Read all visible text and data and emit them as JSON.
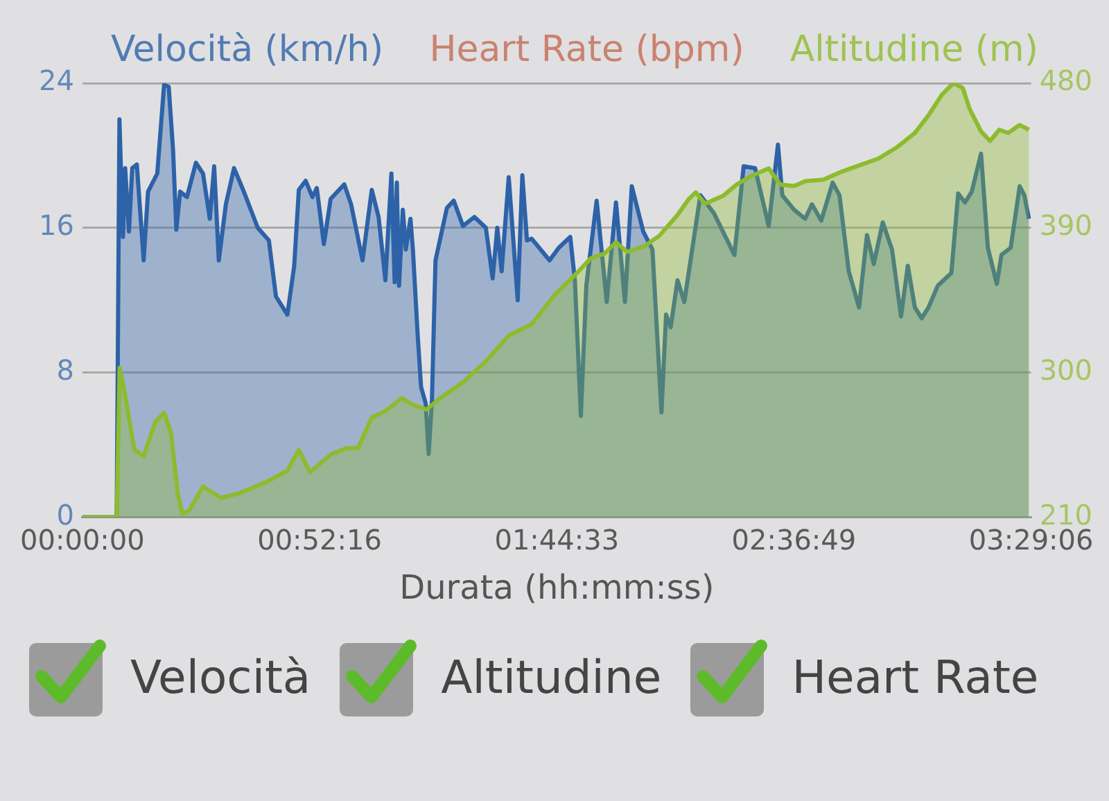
{
  "chart_data": {
    "type": "area",
    "xlabel": "Durata (hh:mm:ss)",
    "xlim": [
      0,
      3.485
    ],
    "xticks": [
      {
        "value": 0,
        "label": "00:00:00"
      },
      {
        "value": 0.8711,
        "label": "00:52:16"
      },
      {
        "value": 1.7425,
        "label": "01:44:33"
      },
      {
        "value": 2.6136,
        "label": "02:36:49"
      },
      {
        "value": 3.485,
        "label": "03:29:06"
      }
    ],
    "ylim": [
      0,
      24
    ],
    "yticks": [
      0,
      8,
      16,
      24
    ],
    "y2lim": [
      210,
      480
    ],
    "y2ticks": [
      210,
      300,
      390,
      480
    ],
    "grid": "y",
    "legend": "top",
    "annotations": [
      "Velocità",
      "Altitudine",
      "Heart Rate"
    ],
    "series": [
      {
        "name": "Velocità (km/h)",
        "color": "#2d62a8",
        "x": [
          0,
          0.126,
          0.136,
          0.149,
          0.157,
          0.171,
          0.183,
          0.2,
          0.225,
          0.241,
          0.275,
          0.3,
          0.317,
          0.333,
          0.345,
          0.359,
          0.384,
          0.417,
          0.443,
          0.468,
          0.484,
          0.501,
          0.527,
          0.557,
          0.593,
          0.644,
          0.685,
          0.711,
          0.753,
          0.778,
          0.795,
          0.82,
          0.845,
          0.861,
          0.887,
          0.912,
          0.962,
          0.987,
          1.029,
          1.063,
          1.088,
          1.113,
          1.135,
          1.147,
          1.155,
          1.163,
          1.177,
          1.188,
          1.205,
          1.214,
          1.231,
          1.244,
          1.261,
          1.272,
          1.284,
          1.297,
          1.339,
          1.364,
          1.398,
          1.44,
          1.482,
          1.507,
          1.524,
          1.54,
          1.566,
          1.583,
          1.599,
          1.616,
          1.633,
          1.65,
          1.716,
          1.75,
          1.792,
          1.809,
          1.831,
          1.851,
          1.889,
          1.926,
          1.96,
          1.993,
          2.018,
          2.06,
          2.094,
          2.127,
          2.144,
          2.161,
          2.186,
          2.211,
          2.27,
          2.32,
          2.395,
          2.429,
          2.471,
          2.521,
          2.555,
          2.571,
          2.614,
          2.655,
          2.68,
          2.714,
          2.756,
          2.781,
          2.815,
          2.853,
          2.882,
          2.907,
          2.94,
          2.974,
          3.007,
          3.032,
          3.058,
          3.083,
          3.108,
          3.142,
          3.192,
          3.217,
          3.242,
          3.267,
          3.301,
          3.326,
          3.359,
          3.376,
          3.41,
          3.443,
          3.46,
          3.477
        ],
        "values": [
          0,
          0,
          22,
          15.5,
          19.3,
          15.8,
          19.3,
          19.5,
          14.2,
          18,
          19,
          23.9,
          23.8,
          20.3,
          15.9,
          18,
          17.7,
          19.6,
          19,
          16.5,
          19.4,
          14.2,
          17.3,
          19.3,
          18,
          16,
          15.3,
          12.2,
          11.2,
          13.9,
          18.1,
          18.6,
          17.7,
          18.2,
          15.1,
          17.6,
          18.4,
          17.3,
          14.2,
          18.1,
          16.6,
          13.1,
          19,
          13,
          18.5,
          12.8,
          17,
          14.8,
          16.5,
          14.8,
          10.2,
          7.2,
          6.3,
          3.5,
          6.5,
          14.2,
          17.1,
          17.5,
          16.1,
          16.6,
          16,
          13.2,
          16,
          13.6,
          18.8,
          15.3,
          12,
          18.9,
          15.3,
          15.4,
          14.2,
          14.9,
          15.5,
          13.1,
          5.6,
          12.8,
          17.5,
          11.9,
          17.4,
          11.9,
          18.3,
          15.8,
          14.8,
          5.8,
          11.2,
          10.5,
          13.1,
          11.9,
          17.8,
          16.8,
          14.5,
          19.4,
          19.3,
          16.1,
          20.6,
          17.8,
          17,
          16.5,
          17.3,
          16.4,
          18.5,
          17.8,
          13.6,
          11.6,
          15.6,
          14,
          16.3,
          14.8,
          11.1,
          13.9,
          11.6,
          11,
          11.6,
          12.8,
          13.5,
          17.9,
          17.4,
          18,
          20.1,
          14.9,
          12.9,
          14.5,
          14.9,
          18.3,
          17.8,
          16.5
        ]
      },
      {
        "name": "Heart Rate (bpm)",
        "color": "#c46a55"
      },
      {
        "name": "Altitudine (m)",
        "color": "#8dbb2e",
        "axis": "y2",
        "x": [
          0,
          0.126,
          0.137,
          0.157,
          0.191,
          0.225,
          0.267,
          0.3,
          0.325,
          0.351,
          0.367,
          0.392,
          0.443,
          0.509,
          0.577,
          0.677,
          0.753,
          0.795,
          0.836,
          0.912,
          0.971,
          1.012,
          1.063,
          1.113,
          1.172,
          1.214,
          1.264,
          1.314,
          1.398,
          1.482,
          1.566,
          1.65,
          1.733,
          1.817,
          1.867,
          1.918,
          1.96,
          2.002,
          2.068,
          2.119,
          2.186,
          2.228,
          2.253,
          2.287,
          2.354,
          2.404,
          2.454,
          2.521,
          2.563,
          2.614,
          2.655,
          2.722,
          2.79,
          2.856,
          2.923,
          2.991,
          3.058,
          3.108,
          3.158,
          3.2,
          3.234,
          3.259,
          3.301,
          3.334,
          3.368,
          3.401,
          3.443,
          3.477
        ],
        "values": [
          210,
          210,
          303,
          286,
          252,
          248,
          269,
          275,
          263,
          224,
          212,
          214,
          229,
          222,
          225,
          232,
          239,
          252,
          238,
          249,
          253,
          253,
          272,
          276,
          284,
          280,
          277,
          284,
          294,
          307,
          323,
          330,
          348,
          362,
          371,
          374,
          381,
          375,
          379,
          385,
          398,
          408,
          412,
          405,
          410,
          417,
          422,
          427,
          417,
          416,
          419,
          420,
          425,
          429,
          433,
          440,
          449,
          460,
          473,
          480,
          477,
          464,
          450,
          444,
          451,
          449,
          454,
          451
        ]
      }
    ]
  }
}
